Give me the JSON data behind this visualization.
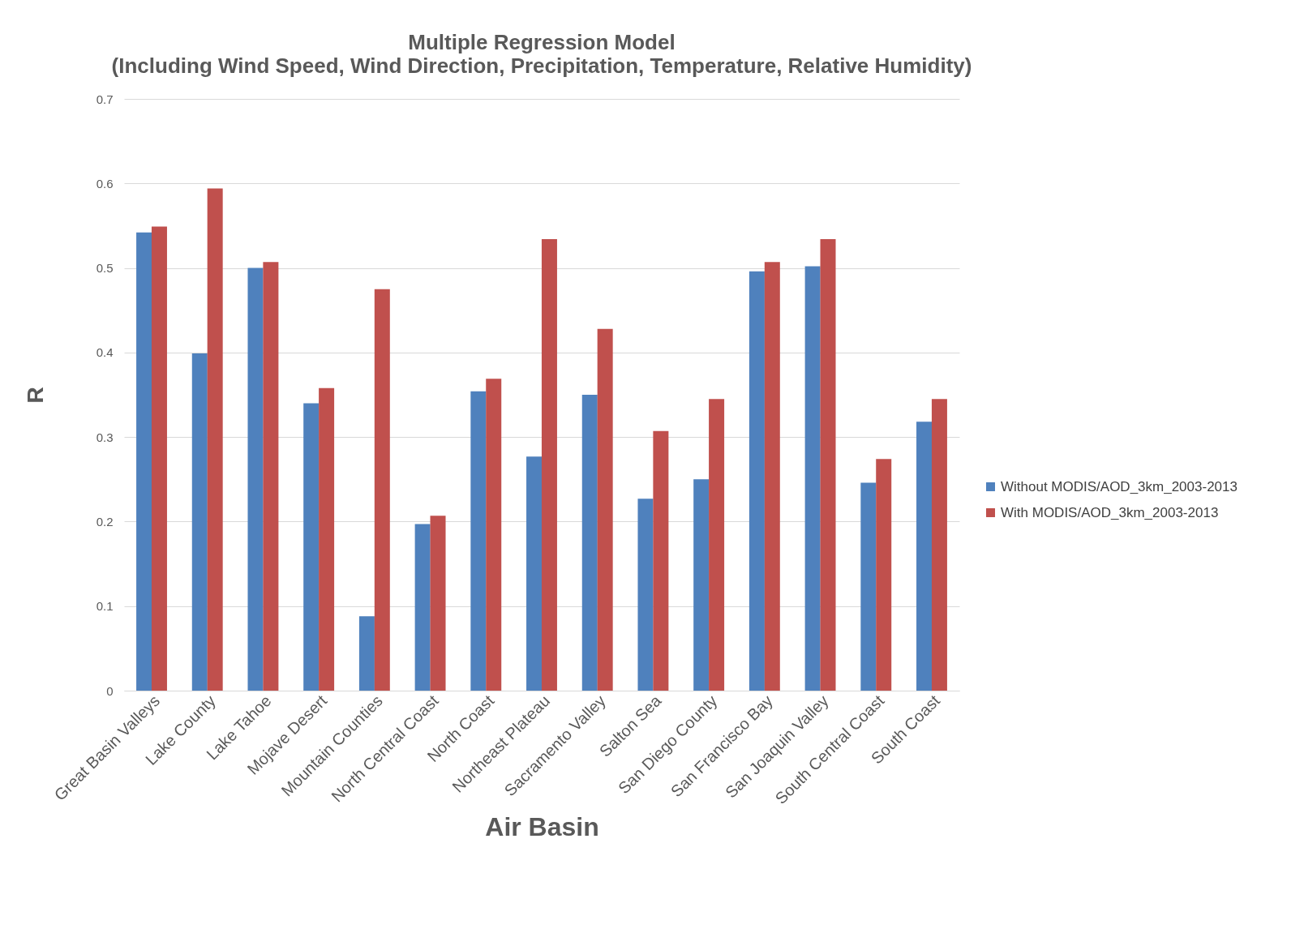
{
  "chart_data": {
    "type": "bar",
    "title": "Multiple Regression Model",
    "subtitle": "(Including Wind Speed, Wind Direction, Precipitation, Temperature, Relative Humidity)",
    "xlabel": "Air Basin",
    "ylabel": "R",
    "categories": [
      "Great Basin Valleys",
      "Lake County",
      "Lake Tahoe",
      "Mojave Desert",
      "Mountain Counties",
      "North Central Coast",
      "North Coast",
      "Northeast Plateau",
      "Sacramento Valley",
      "Salton Sea",
      "San Diego County",
      "San Francisco Bay",
      "San Joaquin Valley",
      "South Central Coast",
      "South Coast"
    ],
    "series": [
      {
        "name": "Without MODIS/AOD_3km_2003-2013",
        "color": "#4f81bd",
        "values": [
          0.542,
          0.399,
          0.5,
          0.34,
          0.088,
          0.197,
          0.354,
          0.277,
          0.35,
          0.227,
          0.25,
          0.496,
          0.502,
          0.246,
          0.318
        ]
      },
      {
        "name": "With MODIS/AOD_3km_2003-2013",
        "color": "#c0504d",
        "values": [
          0.549,
          0.594,
          0.507,
          0.358,
          0.475,
          0.207,
          0.369,
          0.534,
          0.428,
          0.307,
          0.345,
          0.507,
          0.534,
          0.274,
          0.345
        ]
      }
    ],
    "ylim": [
      0,
      0.7
    ],
    "yticks": [
      0,
      0.1,
      0.2,
      0.3,
      0.4,
      0.5,
      0.6,
      0.7
    ],
    "grid": "y",
    "legend": "right"
  }
}
